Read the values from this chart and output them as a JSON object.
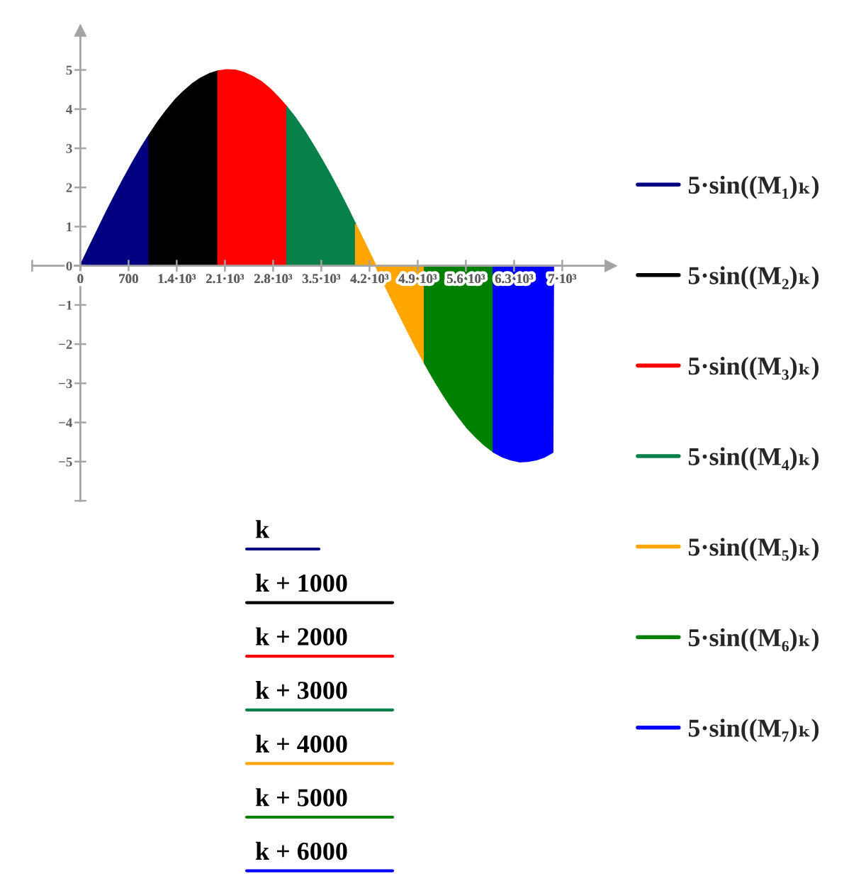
{
  "chart_data": {
    "type": "area",
    "series": [
      {
        "name": "5·sin((M₁)ₖ)",
        "color": "#000080",
        "x": [
          0,
          125,
          250,
          375,
          500,
          625,
          750,
          875,
          1000
        ],
        "values": [
          0,
          0.46,
          0.91,
          1.36,
          1.79,
          2.21,
          2.61,
          2.99,
          3.34
        ]
      },
      {
        "name": "5·sin((M₂)ₖ)",
        "color": "#000000",
        "x": [
          1000,
          1125,
          1250,
          1375,
          1500,
          1625,
          1750,
          1875,
          2000
        ],
        "values": [
          3.34,
          3.67,
          3.96,
          4.23,
          4.45,
          4.64,
          4.79,
          4.9,
          4.97
        ]
      },
      {
        "name": "5·sin((M₃)ₖ)",
        "color": "#ff0000",
        "x": [
          2000,
          2125,
          2250,
          2375,
          2500,
          2625,
          2750,
          2875,
          3000
        ],
        "values": [
          4.97,
          5.0,
          4.99,
          4.93,
          4.83,
          4.7,
          4.52,
          4.3,
          4.05
        ]
      },
      {
        "name": "5·sin((M₄)ₖ)",
        "color": "#078049",
        "x": [
          3000,
          3125,
          3250,
          3375,
          3500,
          3625,
          3750,
          3875,
          4000
        ],
        "values": [
          4.05,
          3.77,
          3.45,
          3.1,
          2.73,
          2.34,
          1.93,
          1.5,
          1.05
        ]
      },
      {
        "name": "5·sin((M₅)ₖ)",
        "color": "#ffa500",
        "x": [
          4000,
          4125,
          4250,
          4375,
          4500,
          4625,
          4750,
          4875,
          5000
        ],
        "values": [
          1.05,
          0.6,
          0.15,
          -0.31,
          -0.77,
          -1.21,
          -1.65,
          -2.08,
          -2.48
        ]
      },
      {
        "name": "5·sin((M₆)ₖ)",
        "color": "#008000",
        "x": [
          5000,
          5125,
          5250,
          5375,
          5500,
          5625,
          5750,
          5875,
          6000
        ],
        "values": [
          -2.48,
          -2.87,
          -3.23,
          -3.57,
          -3.87,
          -4.15,
          -4.38,
          -4.58,
          -4.75
        ]
      },
      {
        "name": "5·sin((M₇)ₖ)",
        "color": "#0000ff",
        "x": [
          6000,
          6125,
          6250,
          6375,
          6500,
          6625,
          6750,
          6860,
          6870,
          7000
        ],
        "values": [
          -4.75,
          -4.87,
          -4.95,
          -5.0,
          -4.99,
          -4.95,
          -4.87,
          -4.76,
          0,
          0
        ]
      }
    ],
    "xlim": [
      -700,
      7700
    ],
    "ylim": [
      -6,
      6
    ],
    "xticks": [
      {
        "value": -700,
        "label": null
      },
      0,
      700,
      {
        "value": 1400,
        "label": "1.4·10³"
      },
      {
        "value": 2100,
        "label": "2.1·10³"
      },
      {
        "value": 2800,
        "label": "2.8·10³"
      },
      {
        "value": 3500,
        "label": "3.5·10³"
      },
      {
        "value": 4200,
        "label": "4.2·10³"
      },
      {
        "value": 4900,
        "label": "4.9·10³"
      },
      {
        "value": 5600,
        "label": "5.6·10³"
      },
      {
        "value": 6300,
        "label": "6.3·10³"
      },
      {
        "value": 7000,
        "label": "7·10³"
      }
    ],
    "yticks": [
      {
        "value": -6,
        "label": null
      },
      -5,
      -4,
      -3,
      -2,
      -1,
      0,
      1,
      2,
      3,
      4,
      5
    ],
    "legend": "right",
    "annotations": [
      "k",
      "k + 1000",
      "k + 2000",
      "k + 3000",
      "k + 4000",
      "k + 5000",
      "k + 6000"
    ]
  }
}
